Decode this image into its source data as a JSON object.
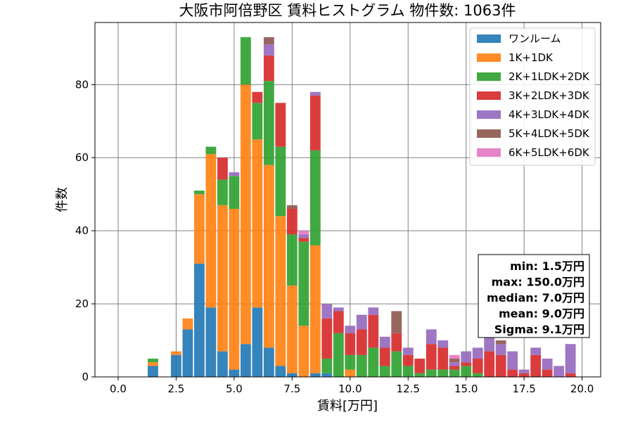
{
  "chart_data": {
    "type": "bar",
    "stacked": true,
    "title": "大阪市阿倍野区 賃料ヒストグラム 物件数: 1063件",
    "xlabel": "賃料[万円]",
    "ylabel": "件数",
    "xlim": [
      -1.0,
      20.8
    ],
    "ylim": [
      0,
      97
    ],
    "xticks": [
      "0.0",
      "2.5",
      "5.0",
      "7.5",
      "10.0",
      "12.5",
      "15.0",
      "17.5",
      "20.0"
    ],
    "yticks": [
      "0",
      "20",
      "40",
      "60",
      "80"
    ],
    "grid": true,
    "legend_position": "top-right",
    "bin_width": 0.5,
    "x": [
      1.5,
      2.0,
      2.5,
      3.0,
      3.5,
      4.0,
      4.5,
      5.0,
      5.5,
      6.0,
      6.5,
      7.0,
      7.5,
      8.0,
      8.5,
      9.0,
      9.5,
      10.0,
      10.5,
      11.0,
      11.5,
      12.0,
      12.5,
      13.0,
      13.5,
      14.0,
      14.5,
      15.0,
      15.5,
      16.0,
      16.5,
      17.0,
      17.5,
      18.0,
      18.5,
      19.0,
      19.5
    ],
    "series": [
      {
        "name": "ワンルーム",
        "color": "#1f77b4",
        "values": [
          3,
          0,
          6,
          13,
          31,
          19,
          7,
          2,
          9,
          19,
          8,
          3,
          1,
          0,
          1,
          1,
          0,
          0,
          0,
          0,
          0,
          0,
          0,
          0,
          0,
          0,
          0,
          0,
          0,
          0,
          0,
          0,
          0,
          0,
          0,
          0,
          0
        ]
      },
      {
        "name": "1K+1DK",
        "color": "#ff7f0e",
        "values": [
          1,
          0,
          1,
          3,
          19,
          42,
          40,
          44,
          71,
          46,
          50,
          41,
          24,
          14,
          35,
          0,
          0,
          2,
          0,
          0,
          0,
          0,
          0,
          0,
          0,
          0,
          0,
          0,
          0,
          0,
          0,
          0,
          0,
          0,
          0,
          0,
          0
        ]
      },
      {
        "name": "2K+1LDK+2DK",
        "color": "#2ca02c",
        "values": [
          1,
          0,
          0,
          0,
          1,
          2,
          7,
          9,
          13,
          10,
          23,
          19,
          14,
          23,
          26,
          4,
          12,
          4,
          6,
          8,
          3,
          7,
          3,
          1,
          2,
          2,
          2,
          3,
          1,
          0,
          0,
          0,
          0,
          0,
          0,
          0,
          0
        ]
      },
      {
        "name": "3K+2LDK+3DK",
        "color": "#d62728",
        "values": [
          0,
          0,
          0,
          0,
          0,
          0,
          6,
          0,
          0,
          3,
          7,
          12,
          7,
          1,
          15,
          11,
          6,
          6,
          7,
          9,
          5,
          5,
          3,
          4,
          7,
          6,
          1,
          1,
          4,
          7,
          6,
          2,
          1,
          6,
          2,
          0,
          1
        ]
      },
      {
        "name": "4K+3LDK+4DK",
        "color": "#9467bd",
        "values": [
          0,
          0,
          0,
          0,
          0,
          0,
          0,
          1,
          0,
          0,
          3,
          0,
          0,
          1,
          1,
          4,
          1,
          2,
          4,
          2,
          3,
          0,
          2,
          0,
          4,
          2,
          1,
          3,
          3,
          4,
          3,
          5,
          1,
          2,
          3,
          3,
          8
        ]
      },
      {
        "name": "5K+4LDK+5DK",
        "color": "#8c564b",
        "values": [
          0,
          0,
          0,
          0,
          0,
          0,
          0,
          0,
          0,
          0,
          2,
          0,
          1,
          0,
          0,
          0,
          0,
          0,
          0,
          0,
          0,
          6,
          0,
          0,
          0,
          0,
          1,
          0,
          0,
          0,
          1,
          0,
          0,
          0,
          0,
          0,
          0
        ]
      },
      {
        "name": "6K+5LDK+6DK",
        "color": "#e377c2",
        "values": [
          0,
          0,
          0,
          0,
          0,
          0,
          0,
          0,
          0,
          0,
          0,
          0,
          0,
          1,
          0,
          0,
          0,
          0,
          0,
          0,
          0,
          0,
          0,
          0,
          0,
          0,
          1,
          0,
          0,
          0,
          0,
          0,
          0,
          0,
          0,
          0,
          0
        ]
      }
    ],
    "stats": [
      "min: 1.5万円",
      "max: 150.0万円",
      "median: 7.0万円",
      "mean: 9.0万円",
      "Sigma: 9.1万円"
    ]
  }
}
